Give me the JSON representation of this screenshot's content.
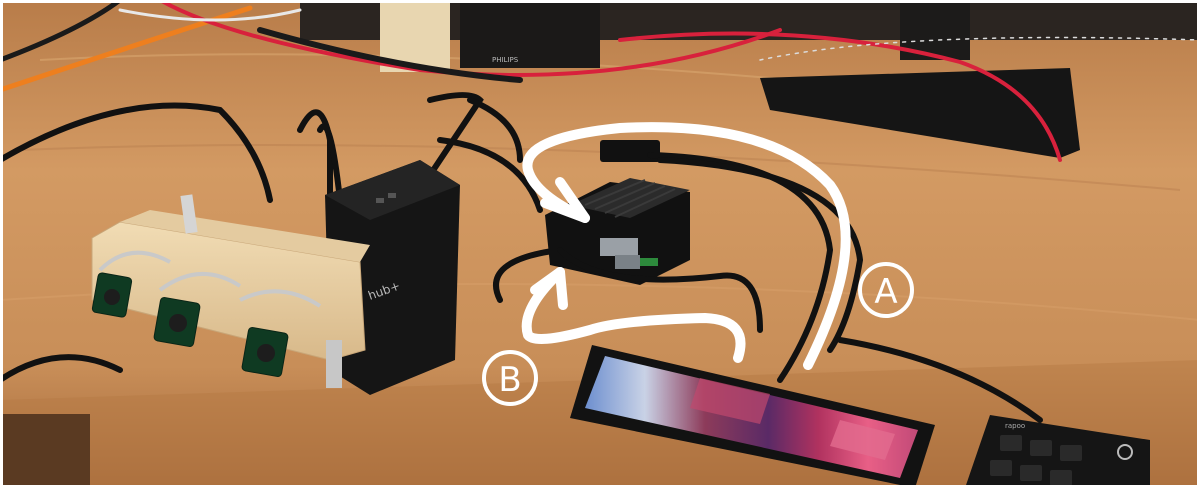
{
  "photo": {
    "alt": "Multi-camera rig with Raspberry Pi, USB hub and long LCD display on a wooden desk",
    "colors": {
      "desk": "#c98f57",
      "desk_dark": "#8a5a32",
      "wall": "#2b2521",
      "arrow": "#ffffff",
      "case": "#141414",
      "cable_red": "#d8213c",
      "cable_orange": "#ee7f1e"
    }
  },
  "labels": {
    "marker_a": "A",
    "marker_b": "B"
  },
  "devices": {
    "hub_brand": "hub+",
    "monitor_brand": "PHILIPS",
    "keyboard_brand": "rapoo"
  }
}
